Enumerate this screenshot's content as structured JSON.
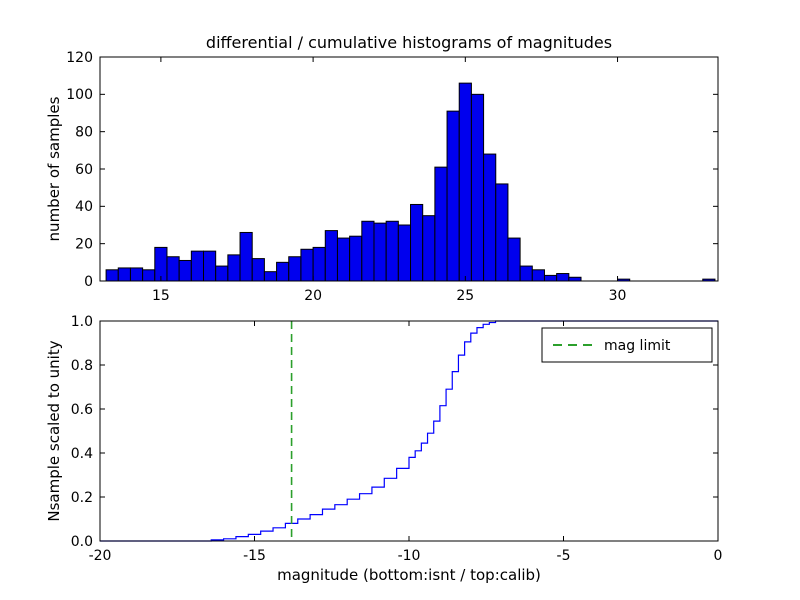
{
  "figure": {
    "title": "differential / cumulative histograms of magnitudes",
    "xlabel": "magnitude (bottom:isnt / top:calib)",
    "background": "#ffffff",
    "frame_color": "#000000"
  },
  "chart_data": [
    {
      "type": "bar",
      "subtype": "differential-histogram",
      "position": "top",
      "ylabel": "number of samples",
      "bin_start": 13.2,
      "bin_width": 0.4,
      "counts": [
        6,
        7,
        7,
        6,
        18,
        13,
        11,
        16,
        16,
        8,
        14,
        26,
        12,
        5,
        10,
        13,
        17,
        18,
        27,
        23,
        24,
        32,
        31,
        32,
        30,
        41,
        35,
        61,
        91,
        106,
        100,
        68,
        52,
        23,
        8,
        6,
        3,
        4,
        2,
        0,
        0,
        0,
        1,
        0,
        0,
        0,
        0,
        0,
        0,
        1
      ],
      "xlim": [
        13.0,
        33.3
      ],
      "ylim": [
        0,
        120
      ],
      "xticks": [
        15,
        20,
        25,
        30
      ],
      "xtick_labels": [
        "15",
        "20",
        "25",
        "30"
      ],
      "yticks": [
        0,
        20,
        40,
        60,
        80,
        100,
        120
      ],
      "ytick_labels": [
        "0",
        "20",
        "40",
        "60",
        "80",
        "100",
        "120"
      ],
      "bar_color": "#0000ee",
      "bar_edge_color": "#000000",
      "grid": false
    },
    {
      "type": "line",
      "subtype": "cumulative-step",
      "position": "bottom",
      "ylabel": "Nsample scaled to unity",
      "xlabel": "magnitude (bottom:isnt / top:calib)",
      "xlim": [
        -20,
        0
      ],
      "ylim": [
        0,
        1.0
      ],
      "xticks": [
        -20,
        -15,
        -10,
        -5,
        0
      ],
      "xtick_labels": [
        "-20",
        "-15",
        "-10",
        "-5",
        "0"
      ],
      "yticks": [
        0.0,
        0.2,
        0.4,
        0.6,
        0.8,
        1.0
      ],
      "ytick_labels": [
        "0.0",
        "0.2",
        "0.4",
        "0.6",
        "0.8",
        "1.0"
      ],
      "line_color": "#0000ff",
      "steps": [
        [
          -20,
          0
        ],
        [
          -16.8,
          0
        ],
        [
          -16.4,
          0.005
        ],
        [
          -16.0,
          0.01
        ],
        [
          -15.6,
          0.02
        ],
        [
          -15.2,
          0.03
        ],
        [
          -14.8,
          0.045
        ],
        [
          -14.4,
          0.06
        ],
        [
          -14.0,
          0.08
        ],
        [
          -13.6,
          0.1
        ],
        [
          -13.2,
          0.12
        ],
        [
          -12.8,
          0.145
        ],
        [
          -12.4,
          0.165
        ],
        [
          -12.0,
          0.19
        ],
        [
          -11.6,
          0.215
        ],
        [
          -11.2,
          0.245
        ],
        [
          -10.8,
          0.285
        ],
        [
          -10.4,
          0.33
        ],
        [
          -10.0,
          0.38
        ],
        [
          -9.8,
          0.41
        ],
        [
          -9.6,
          0.445
        ],
        [
          -9.4,
          0.49
        ],
        [
          -9.2,
          0.545
        ],
        [
          -9.0,
          0.615
        ],
        [
          -8.8,
          0.69
        ],
        [
          -8.6,
          0.77
        ],
        [
          -8.4,
          0.845
        ],
        [
          -8.2,
          0.905
        ],
        [
          -8.0,
          0.945
        ],
        [
          -7.8,
          0.97
        ],
        [
          -7.6,
          0.985
        ],
        [
          -7.4,
          0.993
        ],
        [
          -7.2,
          1.0
        ],
        [
          0,
          1.0
        ]
      ],
      "mag_limit": {
        "x": -13.8,
        "color": "#2ca02c",
        "style": "dashed"
      },
      "legend": {
        "position": "upper right",
        "entries": [
          {
            "label": "mag limit",
            "color": "#2ca02c",
            "dash": true
          }
        ]
      },
      "grid": false
    }
  ]
}
